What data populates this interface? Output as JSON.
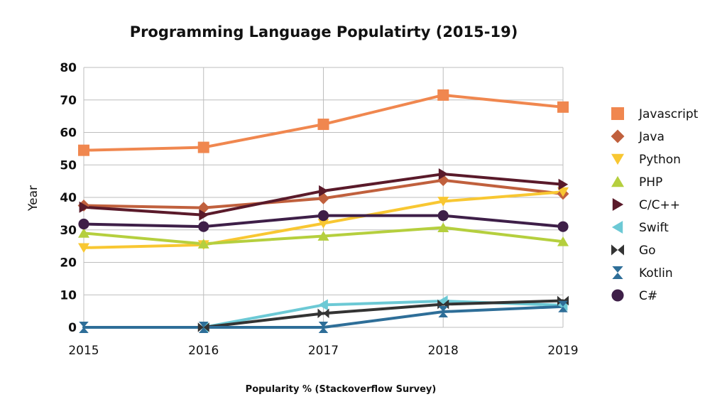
{
  "chart_data": {
    "type": "line",
    "title": "Programming Language Populatirty (2015-19)",
    "xlabel": "Popularity % (Stackoverflow Survey)",
    "ylabel": "Year",
    "categories": [
      "2015",
      "2016",
      "2017",
      "2018",
      "2019"
    ],
    "ylim": [
      0,
      80
    ],
    "yticks": [
      "0",
      "10",
      "20",
      "30",
      "40",
      "50",
      "60",
      "70",
      "80"
    ],
    "grid": true,
    "legend_position": "right",
    "series": [
      {
        "name": "Javascript",
        "values": [
          54.5,
          55.4,
          62.5,
          71.5,
          67.8
        ],
        "color": "#f0874f",
        "marker": "square"
      },
      {
        "name": "Java",
        "values": [
          37.5,
          36.8,
          39.7,
          45.3,
          41.1
        ],
        "color": "#c0603d",
        "marker": "diamond"
      },
      {
        "name": "Python",
        "values": [
          24.5,
          25.4,
          32.0,
          38.8,
          41.7
        ],
        "color": "#f8c732",
        "marker": "triangle-down"
      },
      {
        "name": "PHP",
        "values": [
          29.0,
          25.7,
          28.1,
          30.7,
          26.4
        ],
        "color": "#b5cf3e",
        "marker": "triangle-up"
      },
      {
        "name": "C/C++",
        "values": [
          37.0,
          34.6,
          42.0,
          47.2,
          44.0
        ],
        "color": "#5a1a2a",
        "marker": "triangle-right"
      },
      {
        "name": "Swift",
        "values": [
          null,
          0.0,
          6.9,
          8.1,
          6.8
        ],
        "color": "#6cc9d5",
        "marker": "triangle-left"
      },
      {
        "name": "Go",
        "values": [
          null,
          0.0,
          4.3,
          7.1,
          8.2
        ],
        "color": "#333333",
        "marker": "bowtie"
      },
      {
        "name": "Kotlin",
        "values": [
          0.0,
          0.0,
          0.0,
          4.8,
          6.4
        ],
        "color": "#2e6e98",
        "marker": "hourglass"
      },
      {
        "name": "C#",
        "values": [
          31.8,
          31.0,
          34.4,
          34.4,
          31.0
        ],
        "color": "#3e1f48",
        "marker": "circle"
      }
    ]
  }
}
